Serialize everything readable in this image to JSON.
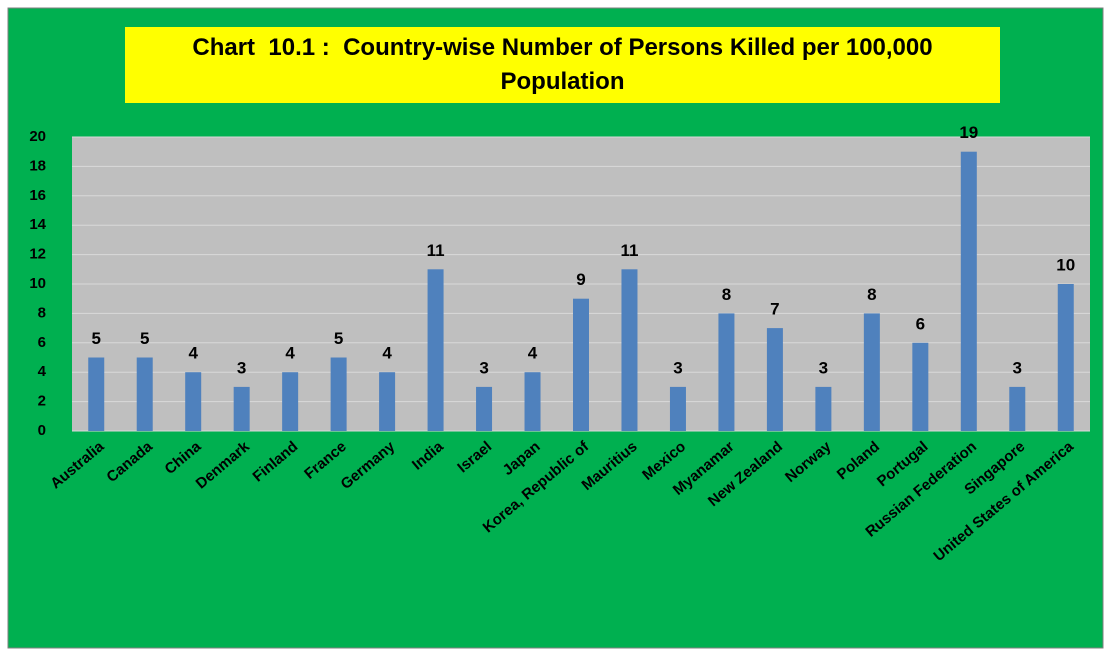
{
  "chart_data": {
    "type": "bar",
    "title": "Chart  10.1 :  Country-wise Number of Persons Killed per 100,000 Population",
    "categories": [
      "Australia",
      "Canada",
      "China",
      "Denmark",
      "Finland",
      "France",
      "Germany",
      "India",
      "Israel",
      "Japan",
      "Korea, Republic of",
      "Mauritius",
      "Mexico",
      "Myanamar",
      "New Zealand",
      "Norway",
      "Poland",
      "Portugal",
      "Russian Federation",
      "Singapore",
      "United States of America"
    ],
    "values": [
      5,
      5,
      4,
      3,
      4,
      5,
      4,
      11,
      3,
      4,
      9,
      11,
      3,
      8,
      7,
      3,
      8,
      6,
      19,
      3,
      10
    ],
    "color": "#4f81bd",
    "ylim": [
      0,
      20
    ],
    "yticks": [
      0,
      2,
      4,
      6,
      8,
      10,
      12,
      14,
      16,
      18,
      20
    ],
    "grid": true
  }
}
